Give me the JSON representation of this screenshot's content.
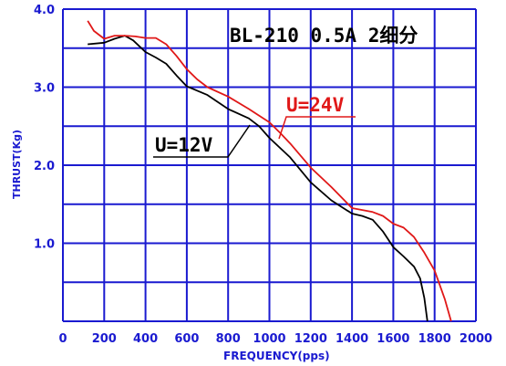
{
  "chart_data": {
    "type": "line",
    "title": "BL-210 0.5A 2细分",
    "xlabel": "FREQUENCY(pps)",
    "ylabel": "THRUST(Kg)",
    "xlim": [
      0,
      2000
    ],
    "ylim": [
      0,
      4.0
    ],
    "grid": true,
    "x_ticks": [
      "0",
      "200",
      "400",
      "600",
      "800",
      "1000",
      "1200",
      "1400",
      "1600",
      "1800",
      "2000"
    ],
    "y_ticks": [
      "1.0",
      "2.0",
      "3.0",
      "4.0"
    ],
    "series": [
      {
        "name": "U=12V",
        "color": "#000000",
        "points": [
          [
            120,
            3.55
          ],
          [
            200,
            3.57
          ],
          [
            250,
            3.62
          ],
          [
            300,
            3.66
          ],
          [
            340,
            3.6
          ],
          [
            400,
            3.45
          ],
          [
            450,
            3.38
          ],
          [
            500,
            3.3
          ],
          [
            550,
            3.15
          ],
          [
            600,
            3.01
          ],
          [
            700,
            2.9
          ],
          [
            800,
            2.72
          ],
          [
            900,
            2.6
          ],
          [
            950,
            2.5
          ],
          [
            1000,
            2.35
          ],
          [
            1100,
            2.1
          ],
          [
            1200,
            1.78
          ],
          [
            1300,
            1.55
          ],
          [
            1400,
            1.38
          ],
          [
            1450,
            1.35
          ],
          [
            1500,
            1.3
          ],
          [
            1550,
            1.15
          ],
          [
            1600,
            0.95
          ],
          [
            1650,
            0.83
          ],
          [
            1700,
            0.7
          ],
          [
            1730,
            0.55
          ],
          [
            1750,
            0.3
          ],
          [
            1765,
            0.0
          ]
        ]
      },
      {
        "name": "U=24V",
        "color": "#e01818",
        "points": [
          [
            120,
            3.85
          ],
          [
            150,
            3.72
          ],
          [
            200,
            3.62
          ],
          [
            250,
            3.66
          ],
          [
            300,
            3.66
          ],
          [
            350,
            3.65
          ],
          [
            400,
            3.63
          ],
          [
            450,
            3.63
          ],
          [
            500,
            3.55
          ],
          [
            550,
            3.4
          ],
          [
            600,
            3.23
          ],
          [
            650,
            3.1
          ],
          [
            700,
            3.0
          ],
          [
            800,
            2.88
          ],
          [
            900,
            2.72
          ],
          [
            1000,
            2.55
          ],
          [
            1050,
            2.42
          ],
          [
            1100,
            2.28
          ],
          [
            1200,
            1.97
          ],
          [
            1300,
            1.72
          ],
          [
            1400,
            1.45
          ],
          [
            1500,
            1.4
          ],
          [
            1550,
            1.35
          ],
          [
            1600,
            1.25
          ],
          [
            1650,
            1.2
          ],
          [
            1700,
            1.08
          ],
          [
            1750,
            0.88
          ],
          [
            1800,
            0.65
          ],
          [
            1850,
            0.28
          ],
          [
            1880,
            0.0
          ]
        ]
      }
    ],
    "annotations": [
      {
        "text": "U=12V",
        "color": "#000000"
      },
      {
        "text": "U=24V",
        "color": "#e01818"
      }
    ]
  },
  "colors": {
    "grid": "#1a1ad0",
    "axis_text": "#1a1ad0",
    "series_12v": "#000000",
    "series_24v": "#e01818"
  }
}
